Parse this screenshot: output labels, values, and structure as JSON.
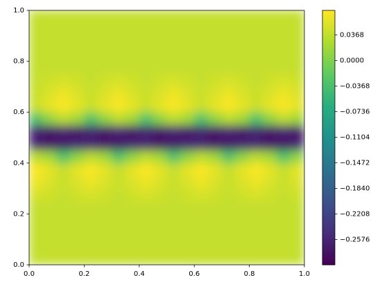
{
  "chart_data": {
    "type": "heatmap",
    "colormap": "viridis",
    "xlim": [
      0,
      1
    ],
    "ylim": [
      0,
      1
    ],
    "xticks": [
      {
        "value": 0,
        "label": "0.0"
      },
      {
        "value": 0.2,
        "label": "0.2"
      },
      {
        "value": 0.4,
        "label": "0.4"
      },
      {
        "value": 0.6,
        "label": "0.6"
      },
      {
        "value": 0.8,
        "label": "0.8"
      },
      {
        "value": 1,
        "label": "1.0"
      }
    ],
    "yticks": [
      {
        "value": 0,
        "label": "0.0"
      },
      {
        "value": 0.2,
        "label": "0.2"
      },
      {
        "value": 0.4,
        "label": "0.4"
      },
      {
        "value": 0.6,
        "label": "0.6"
      },
      {
        "value": 0.8,
        "label": "0.8"
      },
      {
        "value": 1,
        "label": "1.0"
      }
    ],
    "clim": [
      -0.294,
      0.072
    ],
    "cticks": [
      0.0368,
      {
        "value": 0,
        "label": "0.0000"
      },
      {
        "value": -0.0368,
        "label": "−0.0368"
      },
      {
        "value": -0.0736,
        "label": "−0.0736"
      },
      {
        "value": -0.1104,
        "label": "−0.1104"
      },
      {
        "value": -0.1472,
        "label": "−0.1472"
      },
      {
        "value": -0.184,
        "label": "−0.1840"
      },
      {
        "value": -0.2208,
        "label": "−0.2208"
      },
      {
        "value": -0.2576,
        "label": "−0.2576"
      }
    ],
    "z": [
      [
        0.04,
        0.04,
        0.04,
        0.04,
        0.04,
        0.04,
        0.04,
        0.04,
        0.04,
        0.04,
        0.04,
        0.04,
        0.04,
        0.04,
        0.04,
        0.04,
        0.04,
        0.04,
        0.04,
        0.04
      ],
      [
        0.04,
        0.04,
        0.04,
        0.04,
        0.04,
        0.04,
        0.04,
        0.04,
        0.04,
        0.04,
        0.04,
        0.04,
        0.04,
        0.04,
        0.04,
        0.04,
        0.04,
        0.04,
        0.04,
        0.04
      ],
      [
        0.04,
        0.04,
        0.04,
        0.04,
        0.04,
        0.04,
        0.04,
        0.04,
        0.04,
        0.04,
        0.04,
        0.04,
        0.04,
        0.04,
        0.04,
        0.04,
        0.04,
        0.04,
        0.04,
        0.04
      ],
      [
        0.04,
        0.04,
        0.04,
        0.04,
        0.04,
        0.04,
        0.04,
        0.04,
        0.04,
        0.04,
        0.04,
        0.04,
        0.04,
        0.04,
        0.04,
        0.04,
        0.04,
        0.04,
        0.04,
        0.04
      ],
      [
        0.04,
        0.04,
        0.04,
        0.04,
        0.04,
        0.04,
        0.04,
        0.04,
        0.04,
        0.04,
        0.04,
        0.04,
        0.04,
        0.04,
        0.04,
        0.04,
        0.04,
        0.04,
        0.04,
        0.04
      ],
      [
        0.05,
        0.045,
        0.04,
        0.045,
        0.05,
        0.045,
        0.04,
        0.045,
        0.05,
        0.045,
        0.04,
        0.045,
        0.05,
        0.045,
        0.04,
        0.045,
        0.05,
        0.045,
        0.04,
        0.045
      ],
      [
        0.062,
        0.052,
        0.042,
        0.052,
        0.062,
        0.052,
        0.042,
        0.052,
        0.062,
        0.052,
        0.042,
        0.052,
        0.062,
        0.052,
        0.042,
        0.052,
        0.062,
        0.052,
        0.042,
        0.052
      ],
      [
        0.07,
        0.058,
        0.04,
        0.058,
        0.07,
        0.058,
        0.04,
        0.058,
        0.07,
        0.058,
        0.04,
        0.058,
        0.07,
        0.058,
        0.04,
        0.058,
        0.07,
        0.058,
        0.04,
        0.058
      ],
      [
        0.035,
        0.02,
        -0.03,
        0.01,
        0.035,
        0.02,
        -0.03,
        0.01,
        0.035,
        0.02,
        -0.03,
        0.01,
        0.035,
        0.02,
        -0.03,
        0.01,
        0.035,
        0.02,
        -0.03,
        0.01
      ],
      [
        -0.26,
        -0.27,
        -0.27,
        -0.26,
        -0.26,
        -0.27,
        -0.27,
        -0.26,
        -0.26,
        -0.27,
        -0.27,
        -0.26,
        -0.26,
        -0.27,
        -0.27,
        -0.26,
        -0.26,
        -0.27,
        -0.27,
        -0.26
      ],
      [
        -0.26,
        -0.27,
        -0.26,
        -0.27,
        -0.26,
        -0.27,
        -0.26,
        -0.27,
        -0.26,
        -0.27,
        -0.26,
        -0.27,
        -0.26,
        -0.27,
        -0.26,
        -0.27,
        -0.26,
        -0.27,
        -0.26,
        -0.27
      ],
      [
        -0.03,
        0.01,
        0.035,
        0.02,
        -0.03,
        0.01,
        0.035,
        0.02,
        -0.03,
        0.01,
        0.035,
        0.02,
        -0.03,
        0.01,
        0.035,
        0.02,
        -0.03,
        0.01,
        0.035,
        0.02
      ],
      [
        0.042,
        0.058,
        0.07,
        0.058,
        0.042,
        0.058,
        0.07,
        0.058,
        0.042,
        0.058,
        0.07,
        0.058,
        0.042,
        0.058,
        0.07,
        0.058,
        0.042,
        0.058,
        0.07,
        0.058
      ],
      [
        0.042,
        0.052,
        0.062,
        0.052,
        0.042,
        0.052,
        0.062,
        0.052,
        0.042,
        0.052,
        0.062,
        0.052,
        0.042,
        0.052,
        0.062,
        0.052,
        0.042,
        0.052,
        0.062,
        0.052
      ],
      [
        0.04,
        0.045,
        0.05,
        0.045,
        0.04,
        0.045,
        0.05,
        0.045,
        0.04,
        0.045,
        0.05,
        0.045,
        0.04,
        0.045,
        0.05,
        0.045,
        0.04,
        0.045,
        0.05,
        0.045
      ],
      [
        0.04,
        0.04,
        0.04,
        0.04,
        0.04,
        0.04,
        0.04,
        0.04,
        0.04,
        0.04,
        0.04,
        0.04,
        0.04,
        0.04,
        0.04,
        0.04,
        0.04,
        0.04,
        0.04,
        0.04
      ],
      [
        0.04,
        0.04,
        0.04,
        0.04,
        0.04,
        0.04,
        0.04,
        0.04,
        0.04,
        0.04,
        0.04,
        0.04,
        0.04,
        0.04,
        0.04,
        0.04,
        0.04,
        0.04,
        0.04,
        0.04
      ],
      [
        0.04,
        0.04,
        0.04,
        0.04,
        0.04,
        0.04,
        0.04,
        0.04,
        0.04,
        0.04,
        0.04,
        0.04,
        0.04,
        0.04,
        0.04,
        0.04,
        0.04,
        0.04,
        0.04,
        0.04
      ],
      [
        0.04,
        0.04,
        0.04,
        0.04,
        0.04,
        0.04,
        0.04,
        0.04,
        0.04,
        0.04,
        0.04,
        0.04,
        0.04,
        0.04,
        0.04,
        0.04,
        0.04,
        0.04,
        0.04,
        0.04
      ],
      [
        0.04,
        0.04,
        0.04,
        0.04,
        0.04,
        0.04,
        0.04,
        0.04,
        0.04,
        0.04,
        0.04,
        0.04,
        0.04,
        0.04,
        0.04,
        0.04,
        0.04,
        0.04,
        0.04,
        0.04
      ]
    ]
  }
}
